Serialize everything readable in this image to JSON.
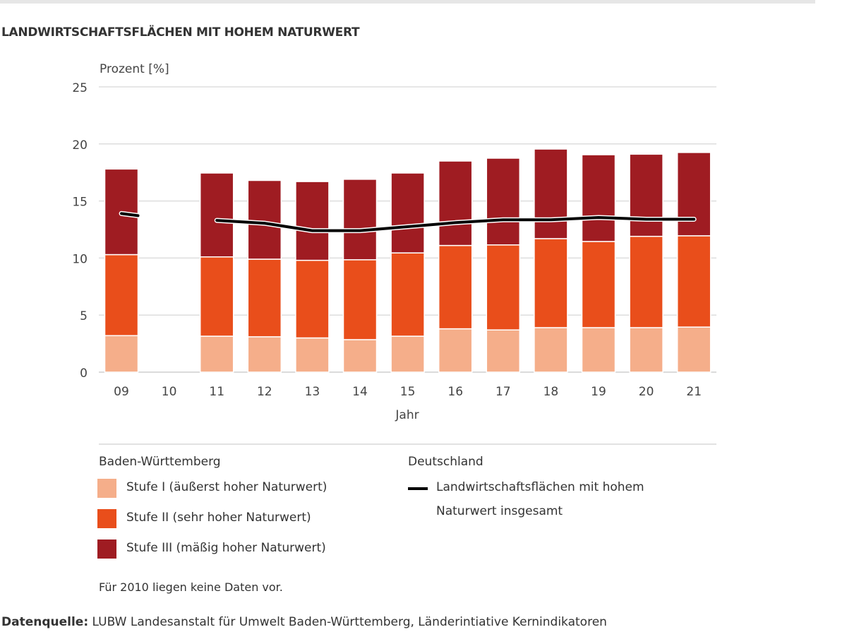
{
  "title": "LANDWIRTSCHAFTSFLÄCHEN MIT HOHEM NATURWERT",
  "chart_data": {
    "type": "bar",
    "stacked": true,
    "title": "LANDWIRTSCHAFTSFLÄCHEN MIT HOHEM NATURWERT",
    "xlabel": "Jahr",
    "ylabel": "Prozent [%]",
    "ylim": [
      0,
      25
    ],
    "yticks": [
      0,
      5,
      10,
      15,
      20,
      25
    ],
    "grid": true,
    "categories": [
      "09",
      "10",
      "11",
      "12",
      "13",
      "14",
      "15",
      "16",
      "17",
      "18",
      "19",
      "20",
      "21"
    ],
    "series": [
      {
        "name": "Stufe I (äußerst hoher Naturwert)",
        "color": "#f5ae8a",
        "cumulative": [
          3.2,
          null,
          3.15,
          3.1,
          3.0,
          2.85,
          3.15,
          3.8,
          3.7,
          3.9,
          3.9,
          3.9,
          3.95
        ]
      },
      {
        "name": "Stufe II (sehr hoher Naturwert)",
        "color": "#e94e1b",
        "cumulative": [
          10.3,
          null,
          10.1,
          9.9,
          9.8,
          9.85,
          10.45,
          11.1,
          11.15,
          11.7,
          11.45,
          11.9,
          11.95
        ]
      },
      {
        "name": "Stufe III (mäßig hoher Naturwert)",
        "color": "#9f1c22",
        "cumulative": [
          17.8,
          null,
          17.45,
          16.8,
          16.7,
          16.9,
          17.45,
          18.5,
          18.75,
          19.55,
          19.05,
          19.1,
          19.25
        ]
      }
    ],
    "line": {
      "name": "Landwirtschaftsflächen mit hohem Naturwert  insgesamt",
      "group": "Deutschland",
      "color": "#000000",
      "values": [
        13.9,
        null,
        13.3,
        13.05,
        12.4,
        12.4,
        12.75,
        13.1,
        13.35,
        13.35,
        13.55,
        13.4,
        13.4
      ]
    },
    "legend": "bottom",
    "legend_groups": [
      "Baden-Württemberg",
      "Deutschland"
    ],
    "note": "Für 2010 liegen keine Daten vor."
  },
  "legend": {
    "bw": "Baden-Württemberg",
    "de": "Deutschland",
    "s1": "Stufe I (äußerst hoher Naturwert)",
    "s2": "Stufe II (sehr hoher Naturwert)",
    "s3": "Stufe III (mäßig hoher Naturwert)",
    "line1": "Landwirtschaftsflächen mit hohem",
    "line2": "Naturwert  insgesamt"
  },
  "note": "Für 2010 liegen keine Daten vor.",
  "source_label": "Datenquelle:",
  "source_text": " LUBW Landesanstalt für Umwelt Baden-Württemberg, Länderintiative Kernindikatoren"
}
